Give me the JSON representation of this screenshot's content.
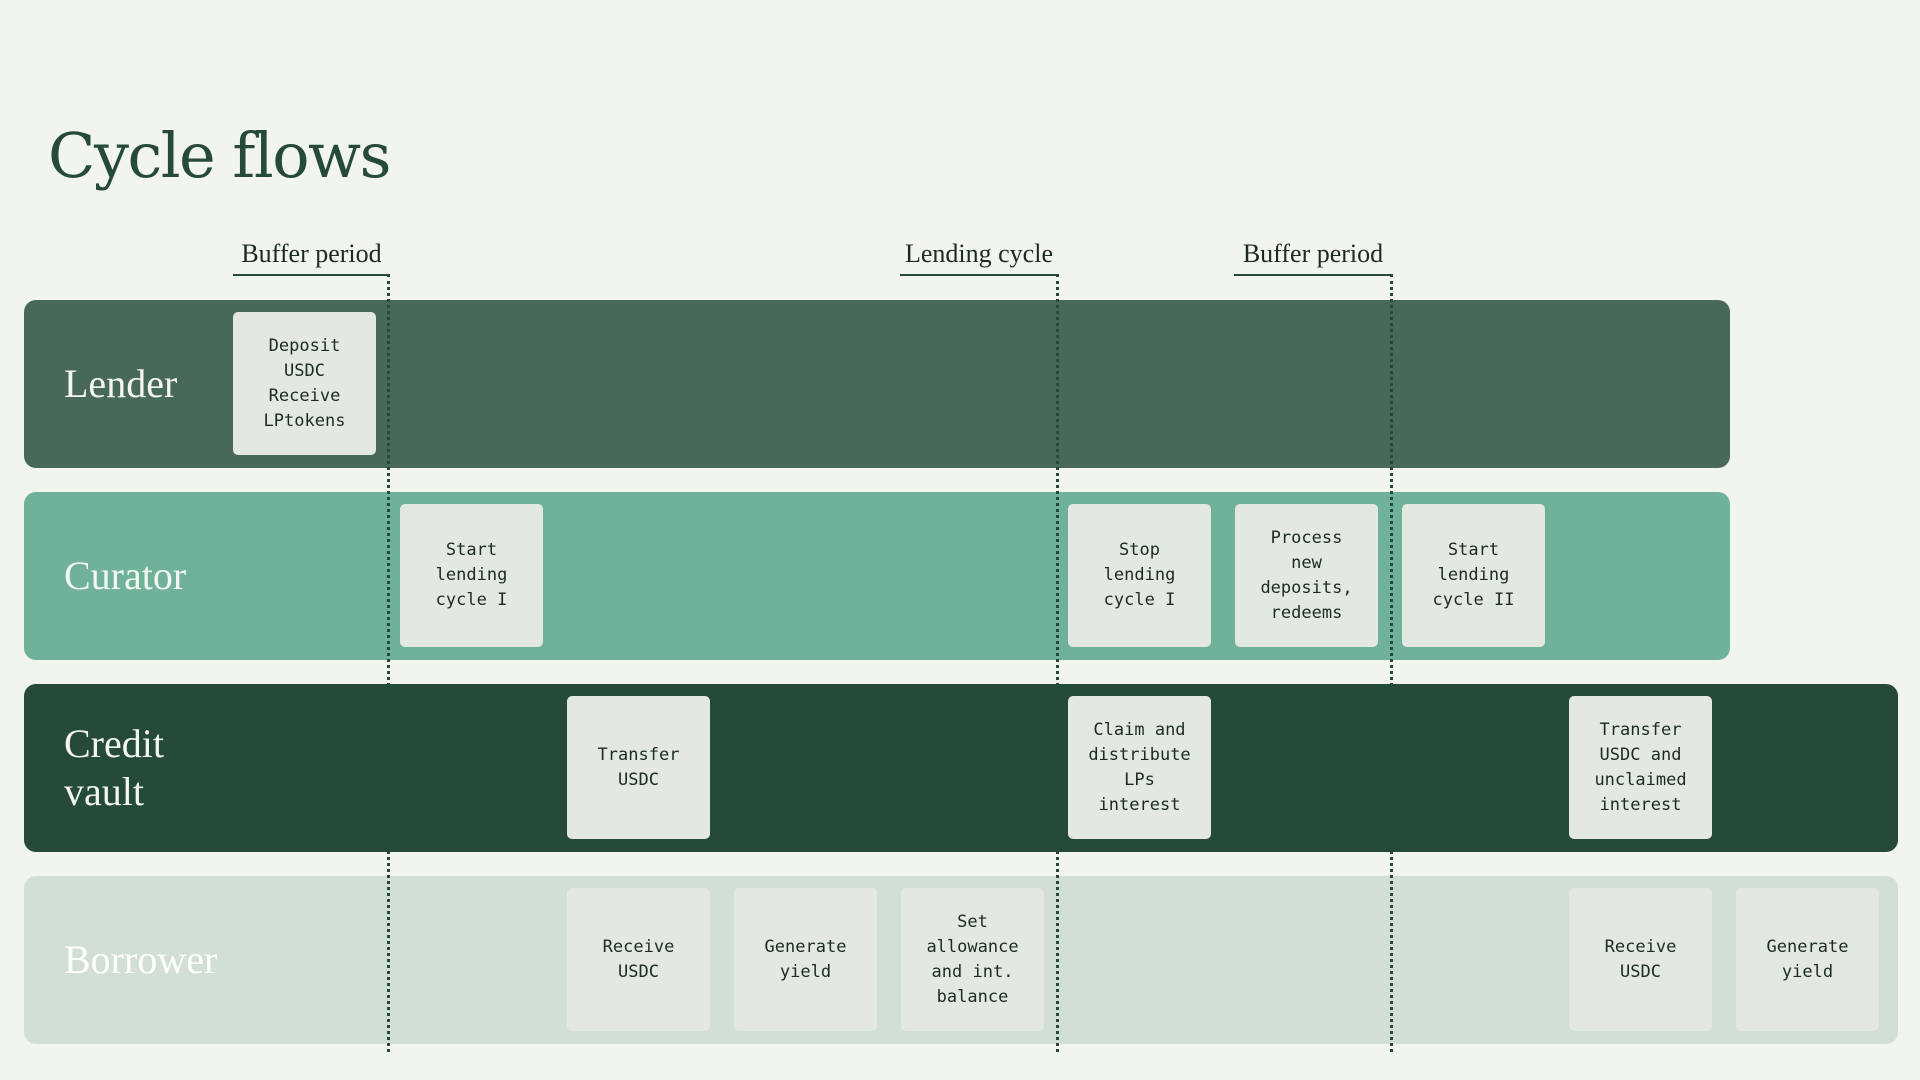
{
  "title": "Cycle flows",
  "phases": [
    {
      "label": "Buffer period"
    },
    {
      "label": "Lending cycle"
    },
    {
      "label": "Buffer period"
    }
  ],
  "lanes": [
    {
      "label": "Lender"
    },
    {
      "label": "Curator"
    },
    {
      "label": "Credit\nvault"
    },
    {
      "label": "Borrower"
    }
  ],
  "cards": {
    "lender_deposit": "Deposit\nUSDC\nReceive\nLPtokens",
    "curator_start_1": "Start\nlending\ncycle I",
    "curator_stop_1": "Stop\nlending\ncycle I",
    "curator_process": "Process\nnew\ndeposits,\nredeems",
    "curator_start_2": "Start\nlending\ncycle II",
    "vault_transfer": "Transfer\nUSDC",
    "vault_claim": "Claim and\ndistribute\nLPs\ninterest",
    "vault_transfer_unclaimed": "Transfer\nUSDC and\nunclaimed\ninterest",
    "borrower_receive_1": "Receive\nUSDC",
    "borrower_yield_1": "Generate\nyield",
    "borrower_allowance": "Set\nallowance\nand int.\nbalance",
    "borrower_receive_2": "Receive\nUSDC",
    "borrower_yield_2": "Generate\nyield"
  },
  "colors": {
    "background": "#f2f4ee",
    "lender_lane": "#48695a",
    "curator_lane": "#70b19c",
    "vault_lane": "#254a3a",
    "borrower_lane": "#d2dfd4",
    "card": "#e3e8e1",
    "dark_green": "#254a3a"
  }
}
